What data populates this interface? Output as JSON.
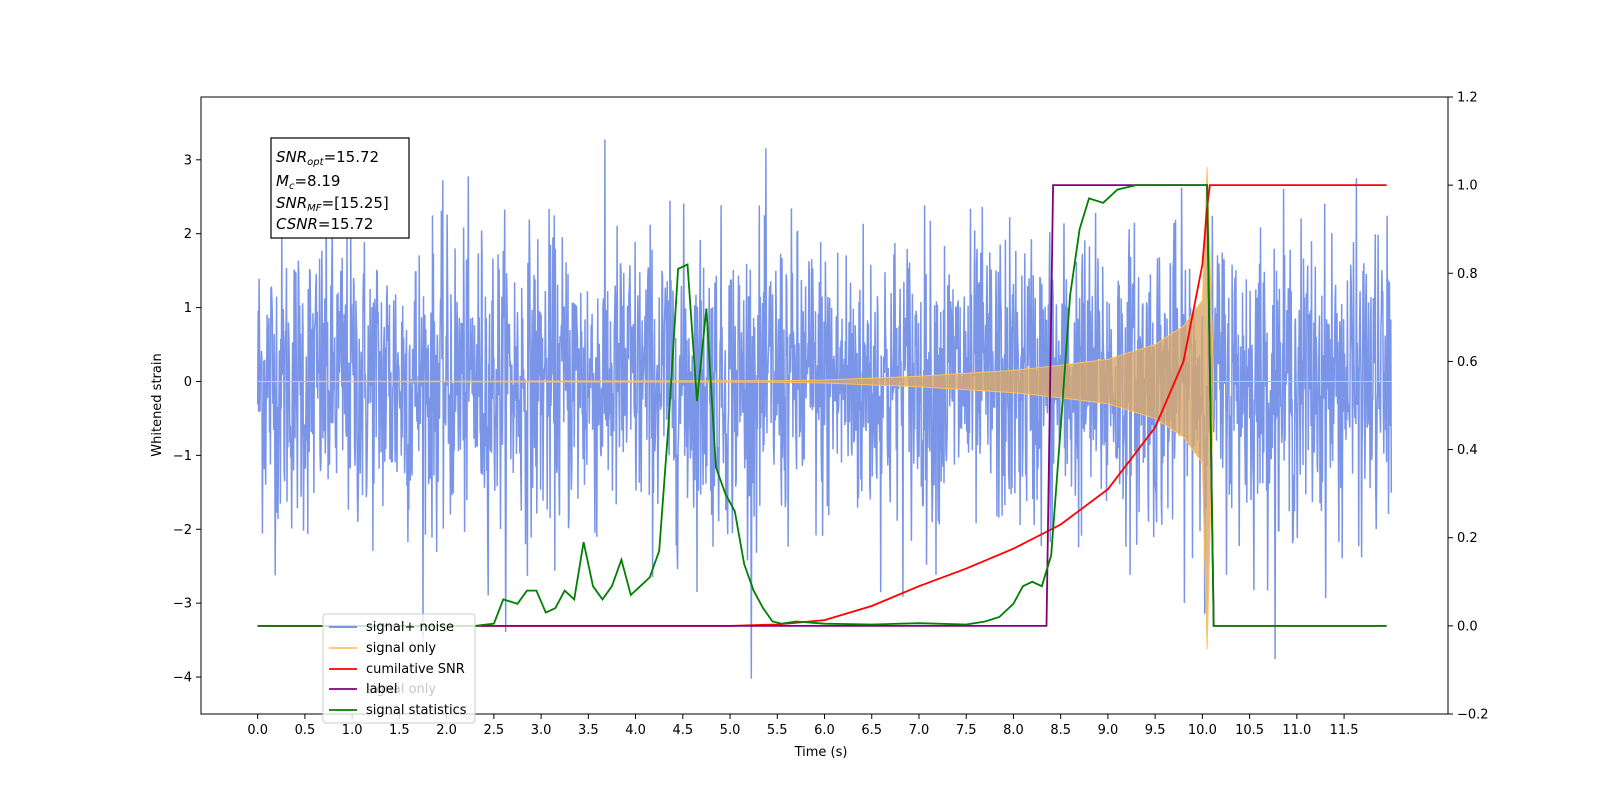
{
  "chart_data": {
    "type": "line",
    "xlabel": "Time (s)",
    "ylabel": "Whitened strain",
    "xlim": [
      -0.6,
      12.6
    ],
    "ylim": [
      -4.5,
      3.85
    ],
    "y2lim": [
      -0.2,
      1.2
    ],
    "x_ticks": [
      "0.0",
      "0.5",
      "1.0",
      "1.5",
      "2.0",
      "2.5",
      "3.0",
      "3.5",
      "4.0",
      "4.5",
      "5.0",
      "5.5",
      "6.0",
      "6.5",
      "7.0",
      "7.5",
      "8.0",
      "8.5",
      "9.0",
      "9.5",
      "10.0",
      "10.5",
      "11.0",
      "11.5"
    ],
    "y_ticks": [
      {
        "value": 3,
        "label": "3"
      },
      {
        "value": 2,
        "label": "2"
      },
      {
        "value": 1,
        "label": "1"
      },
      {
        "value": 0,
        "label": "0"
      },
      {
        "value": -1,
        "label": "−1"
      },
      {
        "value": -2,
        "label": "−2"
      },
      {
        "value": -3,
        "label": "−3"
      },
      {
        "value": -4,
        "label": "−4"
      }
    ],
    "y2_ticks": [
      "1.2",
      "1.0",
      "0.8",
      "0.6",
      "0.4",
      "0.2",
      "0.0",
      "−0.2"
    ],
    "info_box": {
      "snr_opt": "15.72",
      "mc": "8.19",
      "snr_mf": "[15.25]",
      "csnr": "15.72"
    },
    "legend": [
      {
        "label": "signal+ noise",
        "color": "#6b8ae6"
      },
      {
        "label": "signal only",
        "color": "#ffc25c"
      },
      {
        "label": "cumilative SNR",
        "color": "#ff0000"
      },
      {
        "label": "label",
        "color": "#800080"
      },
      {
        "label": "signal statistics",
        "color": "#008000"
      }
    ],
    "legend_placement": "lower-left",
    "hidden_label_text": "signal only",
    "grid": false,
    "series": [
      {
        "name": "signal+ noise",
        "axis": "left",
        "color": "#6b8ae6",
        "description_values": {
          "x_start": 0.0,
          "x_end": 12.0,
          "mean": 0.0,
          "std": 1.0,
          "max_peak": 3.5,
          "min_peak": -4.1
        }
      },
      {
        "name": "signal only",
        "axis": "left",
        "color": "#ffc25c",
        "envelope": [
          [
            0.0,
            0.0
          ],
          [
            5.5,
            0.01
          ],
          [
            6.0,
            0.02
          ],
          [
            7.0,
            0.07
          ],
          [
            8.0,
            0.15
          ],
          [
            8.5,
            0.22
          ],
          [
            9.0,
            0.3
          ],
          [
            9.5,
            0.5
          ],
          [
            9.8,
            0.75
          ],
          [
            10.0,
            1.1
          ],
          [
            10.05,
            2.9
          ],
          [
            10.12,
            0.0
          ],
          [
            12.0,
            0.0
          ]
        ]
      },
      {
        "name": "cumilative SNR",
        "axis": "right",
        "color": "#ff0000",
        "points": [
          [
            0.0,
            0.0
          ],
          [
            5.0,
            0.0
          ],
          [
            5.5,
            0.003
          ],
          [
            6.0,
            0.013
          ],
          [
            6.5,
            0.045
          ],
          [
            7.0,
            0.09
          ],
          [
            7.5,
            0.13
          ],
          [
            8.0,
            0.175
          ],
          [
            8.5,
            0.23
          ],
          [
            9.0,
            0.31
          ],
          [
            9.5,
            0.45
          ],
          [
            9.8,
            0.6
          ],
          [
            10.0,
            0.82
          ],
          [
            10.05,
            0.95
          ],
          [
            10.08,
            1.0
          ],
          [
            11.95,
            1.0
          ]
        ]
      },
      {
        "name": "label",
        "axis": "right",
        "color": "#800080",
        "points": [
          [
            0.0,
            0.0
          ],
          [
            8.35,
            0.0
          ],
          [
            8.42,
            1.0
          ],
          [
            10.05,
            1.0
          ],
          [
            10.12,
            0.0
          ],
          [
            11.95,
            0.0
          ]
        ]
      },
      {
        "name": "signal statistics",
        "axis": "right",
        "color": "#008000",
        "points": [
          [
            0.0,
            0.0
          ],
          [
            2.3,
            0.0
          ],
          [
            2.5,
            0.005
          ],
          [
            2.6,
            0.06
          ],
          [
            2.75,
            0.05
          ],
          [
            2.85,
            0.08
          ],
          [
            2.95,
            0.08
          ],
          [
            3.05,
            0.03
          ],
          [
            3.15,
            0.04
          ],
          [
            3.25,
            0.08
          ],
          [
            3.35,
            0.06
          ],
          [
            3.45,
            0.19
          ],
          [
            3.55,
            0.09
          ],
          [
            3.65,
            0.06
          ],
          [
            3.75,
            0.09
          ],
          [
            3.85,
            0.15
          ],
          [
            3.95,
            0.07
          ],
          [
            4.05,
            0.09
          ],
          [
            4.15,
            0.11
          ],
          [
            4.25,
            0.17
          ],
          [
            4.35,
            0.46
          ],
          [
            4.45,
            0.81
          ],
          [
            4.55,
            0.82
          ],
          [
            4.65,
            0.51
          ],
          [
            4.75,
            0.72
          ],
          [
            4.85,
            0.36
          ],
          [
            4.95,
            0.3
          ],
          [
            5.05,
            0.26
          ],
          [
            5.15,
            0.14
          ],
          [
            5.25,
            0.08
          ],
          [
            5.35,
            0.04
          ],
          [
            5.45,
            0.01
          ],
          [
            5.55,
            0.005
          ],
          [
            5.7,
            0.01
          ],
          [
            6.0,
            0.005
          ],
          [
            6.5,
            0.003
          ],
          [
            7.0,
            0.006
          ],
          [
            7.5,
            0.003
          ],
          [
            7.7,
            0.01
          ],
          [
            7.85,
            0.02
          ],
          [
            8.0,
            0.05
          ],
          [
            8.1,
            0.09
          ],
          [
            8.2,
            0.1
          ],
          [
            8.3,
            0.09
          ],
          [
            8.4,
            0.16
          ],
          [
            8.5,
            0.45
          ],
          [
            8.6,
            0.75
          ],
          [
            8.7,
            0.9
          ],
          [
            8.8,
            0.97
          ],
          [
            8.95,
            0.96
          ],
          [
            9.1,
            0.99
          ],
          [
            9.3,
            1.0
          ],
          [
            10.05,
            1.0
          ],
          [
            10.12,
            0.0
          ],
          [
            11.95,
            0.0
          ]
        ]
      }
    ]
  }
}
